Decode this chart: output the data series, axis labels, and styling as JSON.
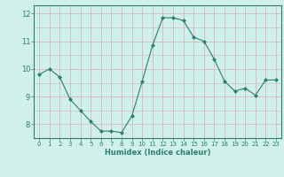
{
  "x": [
    0,
    1,
    2,
    3,
    4,
    5,
    6,
    7,
    8,
    9,
    10,
    11,
    12,
    13,
    14,
    15,
    16,
    17,
    18,
    19,
    20,
    21,
    22,
    23
  ],
  "y": [
    9.8,
    10.0,
    9.7,
    8.9,
    8.5,
    8.1,
    7.75,
    7.75,
    7.7,
    8.3,
    9.55,
    10.85,
    11.85,
    11.85,
    11.75,
    11.15,
    11.0,
    10.35,
    9.55,
    9.2,
    9.3,
    9.05,
    9.6,
    9.6
  ],
  "line_color": "#2e7d6e",
  "marker": "D",
  "marker_size": 2.0,
  "bg_color": "#cff0eb",
  "grid_color": "#dbaab0",
  "xlabel": "Humidex (Indice chaleur)",
  "ylim": [
    7.5,
    12.3
  ],
  "xlim": [
    -0.5,
    23.5
  ],
  "yticks": [
    8,
    9,
    10,
    11,
    12
  ],
  "xticks": [
    0,
    1,
    2,
    3,
    4,
    5,
    6,
    7,
    8,
    9,
    10,
    11,
    12,
    13,
    14,
    15,
    16,
    17,
    18,
    19,
    20,
    21,
    22,
    23
  ],
  "font_color": "#2e7d6e",
  "spine_color": "#2e7d6e",
  "tick_color": "#2e7d6e",
  "xlabel_fontsize": 6.0,
  "xticklabel_fontsize": 5.0,
  "yticklabel_fontsize": 6.0
}
